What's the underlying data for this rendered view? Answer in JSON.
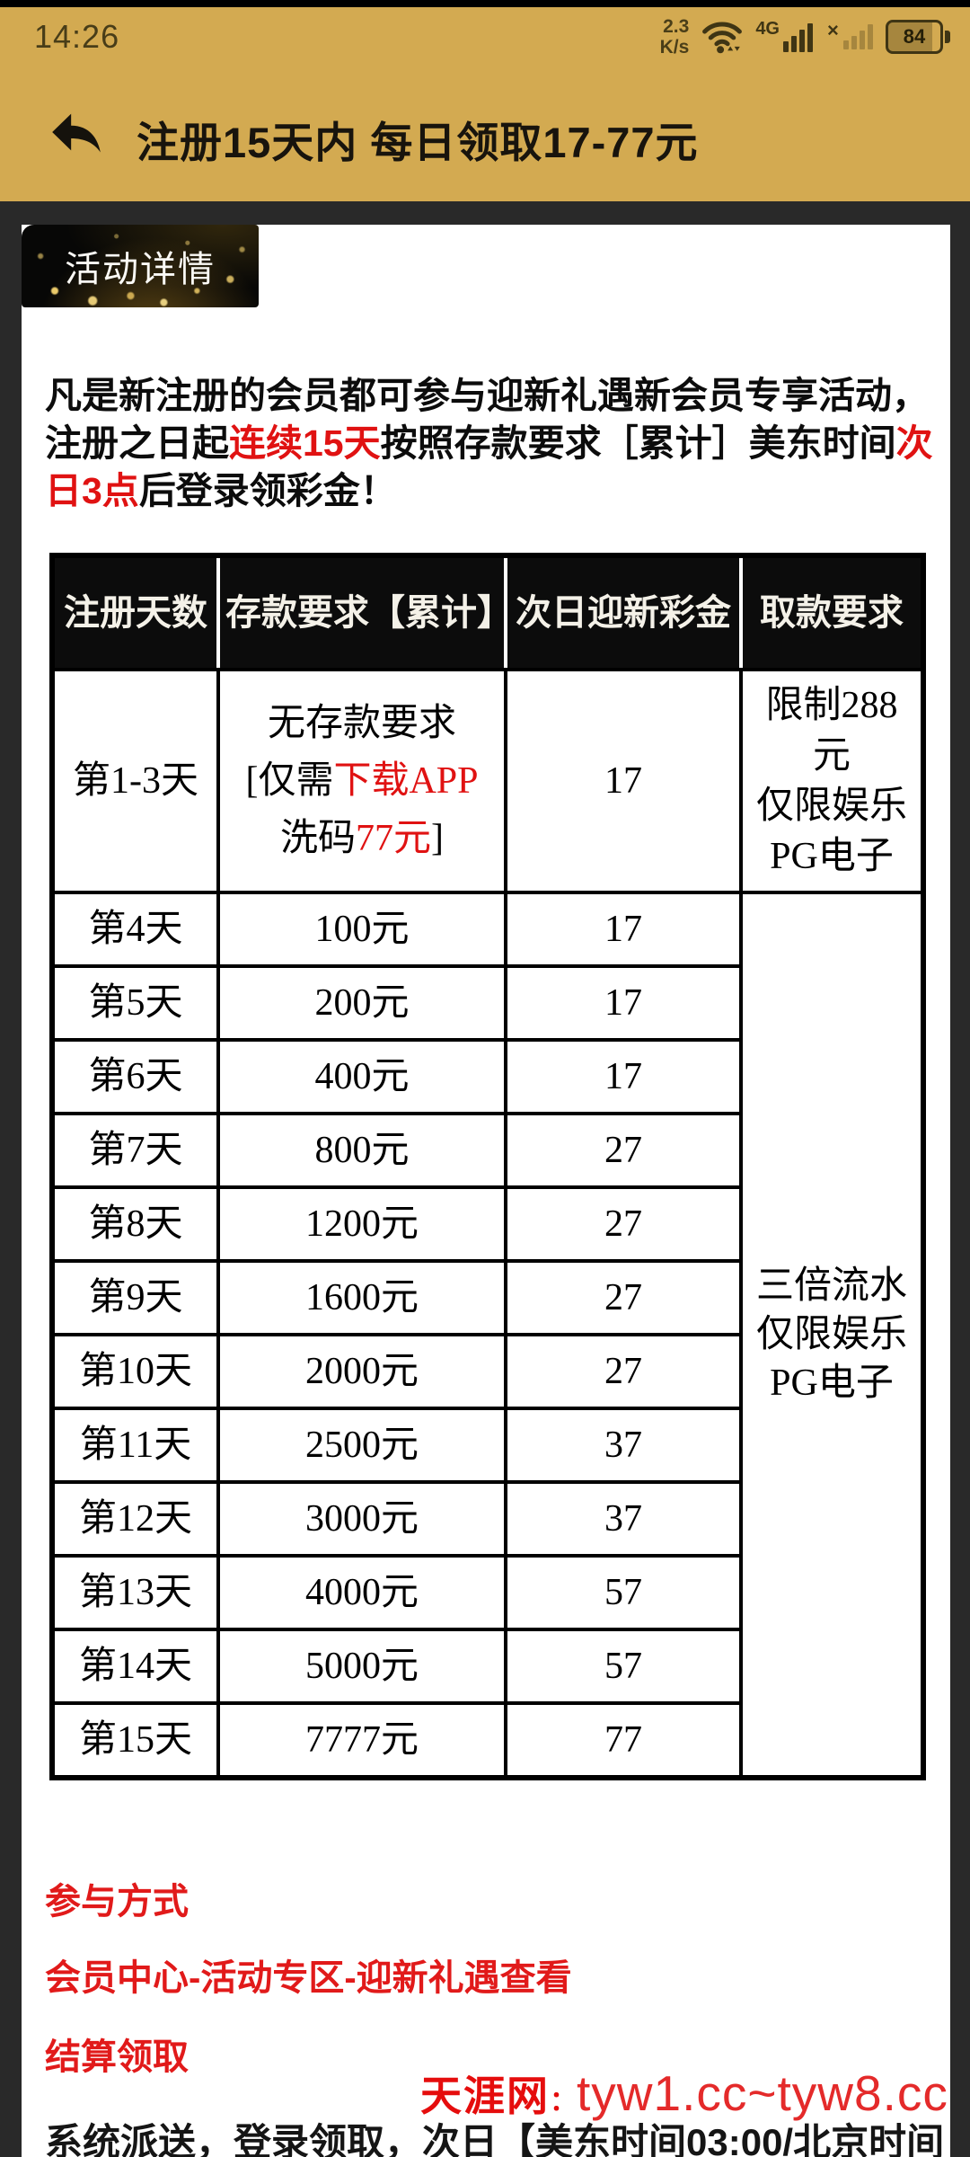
{
  "colors": {
    "header_gold": "#d3aa51",
    "page_background": "#292929",
    "card_background": "#ffffff",
    "table_header_background": "#0c0c0c",
    "highlight_red": "#e01212",
    "section_red": "#e11a1a",
    "watermark_red": "#e42a2a"
  },
  "status_bar": {
    "time": "14:26",
    "net_speed_top": "2.3",
    "net_speed_bottom": "K/s",
    "network_type": "4G",
    "no_sim_mark": "×",
    "battery_level": "84"
  },
  "app_bar": {
    "title": "注册15天内 每日领取17-77元"
  },
  "badge": {
    "label": "活动详情"
  },
  "intro": {
    "segments": [
      {
        "text": "凡是新注册的会员都可参与迎新礼遇新会员专享活动，"
      },
      {
        "br": true
      },
      {
        "text": "注册之日起"
      },
      {
        "text": "连续15天",
        "red": true
      },
      {
        "text": "按照存款要求［累计］美东时间"
      },
      {
        "text": "次",
        "red": true
      },
      {
        "br": true
      },
      {
        "text": "日3点",
        "red": true
      },
      {
        "text": "后登录领彩金！"
      }
    ]
  },
  "promo_table": {
    "headers": [
      "注册天数",
      "存款要求【累计】",
      "次日迎新彩金",
      "取款要求"
    ],
    "row_first": {
      "day": "第1-3天",
      "deposit_segments": [
        {
          "text": "无存款要求"
        },
        {
          "br": true
        },
        {
          "text": "[仅需"
        },
        {
          "text": "下载APP",
          "red": true
        },
        {
          "br": true
        },
        {
          "text": "洗码"
        },
        {
          "text": "77元",
          "red": true
        },
        {
          "text": "]"
        }
      ],
      "bonus": "17",
      "withdraw_lines": [
        "限制288元",
        "仅限娱乐",
        "PG电子"
      ]
    },
    "rows": [
      {
        "day": "第4天",
        "deposit": "100元",
        "bonus": "17"
      },
      {
        "day": "第5天",
        "deposit": "200元",
        "bonus": "17"
      },
      {
        "day": "第6天",
        "deposit": "400元",
        "bonus": "17"
      },
      {
        "day": "第7天",
        "deposit": "800元",
        "bonus": "27"
      },
      {
        "day": "第8天",
        "deposit": "1200元",
        "bonus": "27"
      },
      {
        "day": "第9天",
        "deposit": "1600元",
        "bonus": "27"
      },
      {
        "day": "第10天",
        "deposit": "2000元",
        "bonus": "27"
      },
      {
        "day": "第11天",
        "deposit": "2500元",
        "bonus": "37"
      },
      {
        "day": "第12天",
        "deposit": "3000元",
        "bonus": "37"
      },
      {
        "day": "第13天",
        "deposit": "4000元",
        "bonus": "57"
      },
      {
        "day": "第14天",
        "deposit": "5000元",
        "bonus": "57"
      },
      {
        "day": "第15天",
        "deposit": "7777元",
        "bonus": "77"
      }
    ],
    "merged_withdraw_lines": [
      "三倍流水",
      "仅限娱乐",
      "PG电子"
    ]
  },
  "sections": {
    "participate_title": "参与方式",
    "participate_path": "会员中心-活动专区-迎新礼遇查看",
    "settle_title": "结算领取",
    "settle_desc": "系统派送，登录领取，次日【美东时间03:00/北京时间"
  },
  "watermark": {
    "site": "天涯网",
    "separator": "：",
    "domains": "tyw1.cc~tyw8.cc"
  }
}
